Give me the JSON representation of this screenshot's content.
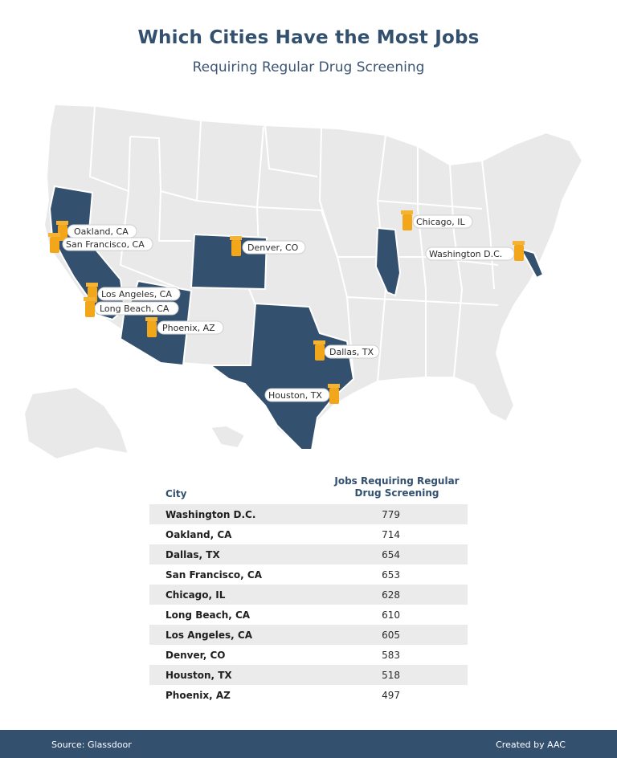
{
  "title": "Which Cities Have the Most Jobs",
  "subtitle": "Requiring Regular Drug Screening",
  "colors": {
    "highlight_state": "#34506f",
    "other_state": "#e9e9e9",
    "pin": "#f2a71b",
    "text_dark": "#33506e"
  },
  "map": {
    "highlighted_states": [
      "California",
      "Arizona",
      "Colorado",
      "Texas",
      "Illinois",
      "Maryland"
    ],
    "pin_icon": "pill-bottle-icon",
    "pins": [
      {
        "label": "Oakland, CA"
      },
      {
        "label": "San Francisco, CA"
      },
      {
        "label": "Los Angeles, CA"
      },
      {
        "label": "Long Beach, CA"
      },
      {
        "label": "Phoenix, AZ"
      },
      {
        "label": "Denver, CO"
      },
      {
        "label": "Dallas, TX"
      },
      {
        "label": "Houston, TX"
      },
      {
        "label": "Chicago, IL"
      },
      {
        "label": "Washington D.C."
      }
    ]
  },
  "table": {
    "col_city": "City",
    "col_jobs_line1": "Jobs Requiring Regular",
    "col_jobs_line2": "Drug Screening",
    "rows": [
      {
        "city": "Washington D.C.",
        "value": "779"
      },
      {
        "city": "Oakland, CA",
        "value": "714"
      },
      {
        "city": "Dallas, TX",
        "value": "654"
      },
      {
        "city": "San Francisco, CA",
        "value": "653"
      },
      {
        "city": "Chicago, IL",
        "value": "628"
      },
      {
        "city": "Long Beach, CA",
        "value": "610"
      },
      {
        "city": "Los Angeles, CA",
        "value": "605"
      },
      {
        "city": "Denver, CO",
        "value": "583"
      },
      {
        "city": "Houston, TX",
        "value": "518"
      },
      {
        "city": "Phoenix, AZ",
        "value": "497"
      }
    ]
  },
  "footer": {
    "source": "Source: Glassdoor",
    "credit": "Created by AAC"
  }
}
